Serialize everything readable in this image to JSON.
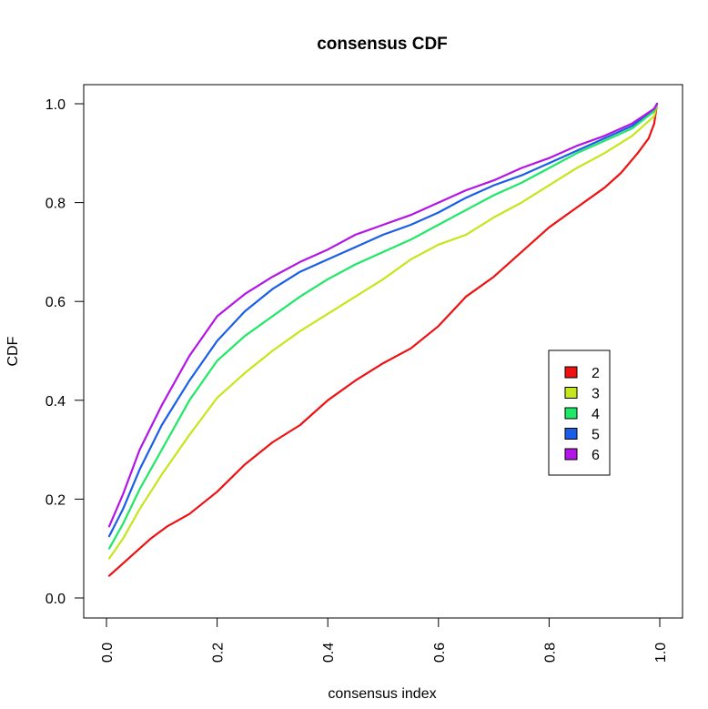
{
  "chart_data": {
    "type": "line",
    "title": "consensus CDF",
    "xlabel": "consensus index",
    "ylabel": "CDF",
    "xlim": [
      0,
      1
    ],
    "ylim": [
      0,
      1
    ],
    "x_ticks": [
      "0.0",
      "0.2",
      "0.4",
      "0.6",
      "0.8",
      "1.0"
    ],
    "y_ticks": [
      "0.0",
      "0.2",
      "0.4",
      "0.6",
      "0.8",
      "1.0"
    ],
    "grid": false,
    "legend_position": "right",
    "series": [
      {
        "name": "2",
        "color": "#ee1111",
        "x": [
          0.005,
          0.02,
          0.05,
          0.08,
          0.11,
          0.15,
          0.2,
          0.25,
          0.3,
          0.35,
          0.4,
          0.45,
          0.5,
          0.55,
          0.6,
          0.65,
          0.7,
          0.75,
          0.8,
          0.85,
          0.9,
          0.93,
          0.96,
          0.98,
          0.99,
          0.995
        ],
        "y": [
          0.045,
          0.06,
          0.09,
          0.12,
          0.145,
          0.17,
          0.215,
          0.27,
          0.315,
          0.35,
          0.4,
          0.44,
          0.475,
          0.505,
          0.55,
          0.61,
          0.65,
          0.7,
          0.75,
          0.79,
          0.83,
          0.86,
          0.9,
          0.93,
          0.96,
          1.0
        ]
      },
      {
        "name": "3",
        "color": "#c5e61a",
        "x": [
          0.005,
          0.03,
          0.06,
          0.1,
          0.15,
          0.2,
          0.25,
          0.3,
          0.35,
          0.4,
          0.45,
          0.5,
          0.55,
          0.6,
          0.65,
          0.7,
          0.75,
          0.8,
          0.85,
          0.9,
          0.95,
          0.99,
          0.995
        ],
        "y": [
          0.08,
          0.12,
          0.18,
          0.25,
          0.33,
          0.405,
          0.455,
          0.5,
          0.54,
          0.575,
          0.61,
          0.645,
          0.685,
          0.715,
          0.735,
          0.77,
          0.8,
          0.835,
          0.87,
          0.9,
          0.935,
          0.975,
          1.0
        ]
      },
      {
        "name": "4",
        "color": "#1ee866",
        "x": [
          0.005,
          0.03,
          0.06,
          0.1,
          0.15,
          0.2,
          0.25,
          0.3,
          0.35,
          0.4,
          0.45,
          0.5,
          0.55,
          0.6,
          0.65,
          0.7,
          0.75,
          0.8,
          0.85,
          0.9,
          0.95,
          0.99,
          0.995
        ],
        "y": [
          0.1,
          0.15,
          0.22,
          0.3,
          0.4,
          0.48,
          0.53,
          0.57,
          0.61,
          0.645,
          0.675,
          0.7,
          0.725,
          0.755,
          0.785,
          0.815,
          0.84,
          0.87,
          0.9,
          0.925,
          0.95,
          0.985,
          1.0
        ]
      },
      {
        "name": "5",
        "color": "#1a5ee8",
        "x": [
          0.005,
          0.03,
          0.06,
          0.1,
          0.15,
          0.2,
          0.25,
          0.3,
          0.35,
          0.4,
          0.45,
          0.5,
          0.55,
          0.6,
          0.65,
          0.7,
          0.75,
          0.8,
          0.85,
          0.9,
          0.95,
          0.99,
          0.995
        ],
        "y": [
          0.125,
          0.18,
          0.26,
          0.35,
          0.44,
          0.52,
          0.58,
          0.625,
          0.66,
          0.685,
          0.71,
          0.735,
          0.755,
          0.78,
          0.81,
          0.835,
          0.855,
          0.88,
          0.905,
          0.93,
          0.955,
          0.99,
          1.0
        ]
      },
      {
        "name": "6",
        "color": "#b414e6",
        "x": [
          0.005,
          0.03,
          0.06,
          0.1,
          0.15,
          0.2,
          0.25,
          0.3,
          0.35,
          0.4,
          0.45,
          0.5,
          0.55,
          0.6,
          0.65,
          0.7,
          0.75,
          0.8,
          0.85,
          0.9,
          0.95,
          0.99,
          0.995
        ],
        "y": [
          0.145,
          0.21,
          0.3,
          0.39,
          0.49,
          0.57,
          0.615,
          0.65,
          0.68,
          0.705,
          0.735,
          0.755,
          0.775,
          0.8,
          0.825,
          0.845,
          0.87,
          0.89,
          0.915,
          0.935,
          0.96,
          0.99,
          1.0
        ]
      }
    ]
  }
}
